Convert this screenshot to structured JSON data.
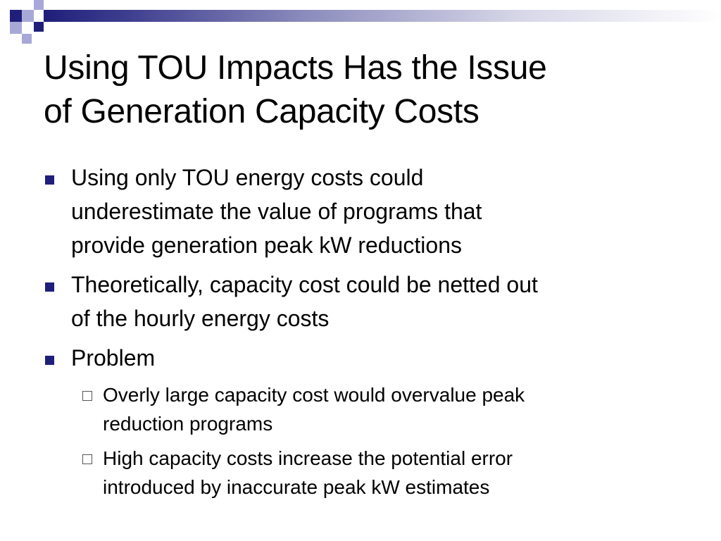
{
  "slide": {
    "title_line1": "Using TOU Impacts Has the Issue",
    "title_line2": "of Generation Capacity Costs",
    "bullets": [
      {
        "text_lines": [
          "Using only TOU energy costs could",
          "underestimate the value of programs that",
          "provide generation peak kW reductions"
        ]
      },
      {
        "text_lines": [
          "Theoretically, capacity cost could be netted out",
          "of the hourly energy costs"
        ]
      },
      {
        "text_lines": [
          "Problem"
        ],
        "sub_bullets": [
          {
            "text_lines": [
              "Overly large capacity cost would overvalue peak",
              "reduction programs"
            ]
          },
          {
            "text_lines": [
              "High capacity costs increase the potential error",
              "introduced by inaccurate peak kW estimates"
            ]
          }
        ]
      }
    ]
  },
  "colors": {
    "accent_navy": "#1f1f7a",
    "accent_light": "#a8a8d8",
    "text": "#000000",
    "background": "#ffffff"
  }
}
